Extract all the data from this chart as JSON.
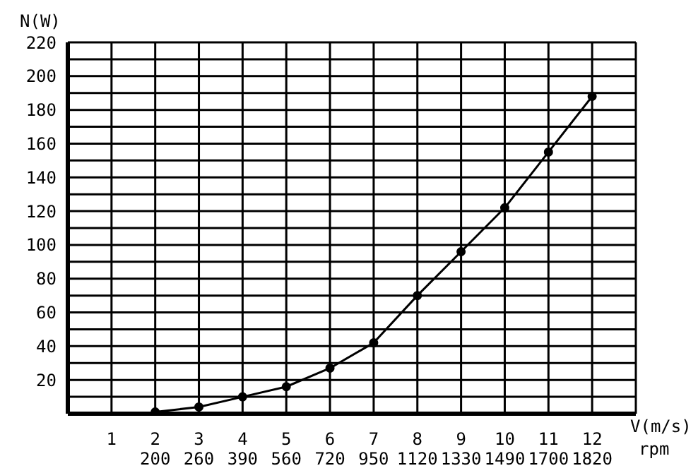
{
  "chart_data": {
    "type": "line",
    "ylabel": "N(W)",
    "xlabel": "V(m/s)",
    "annotations": [
      "rpm"
    ],
    "categories": [
      "1",
      "2\n200",
      "3\n260",
      "4\n390",
      "5\n560",
      "6\n720",
      "7\n950",
      "8\n1120",
      "9\n1330",
      "10\n1490",
      "11\n1700",
      "12\n1820"
    ],
    "series": [
      {
        "color": "#000000",
        "values": [
          null,
          1,
          4,
          10,
          16,
          27,
          42,
          70,
          96,
          122,
          155,
          188
        ]
      }
    ],
    "ylim": [
      0,
      220
    ],
    "yticks": [
      {
        "value": 10,
        "label": null
      },
      20,
      {
        "value": 30,
        "label": null
      },
      40,
      {
        "value": 50,
        "label": null
      },
      60,
      {
        "value": 70,
        "label": null
      },
      80,
      {
        "value": 90,
        "label": null
      },
      100,
      {
        "value": 110,
        "label": null
      },
      120,
      {
        "value": 130,
        "label": null
      },
      140,
      {
        "value": 150,
        "label": null
      },
      160,
      {
        "value": 170,
        "label": null
      },
      180,
      {
        "value": 190,
        "label": null
      },
      200,
      {
        "value": 210,
        "label": null
      },
      220
    ],
    "grid": true,
    "marker": "circle",
    "line_style": "solid",
    "legend": false
  }
}
